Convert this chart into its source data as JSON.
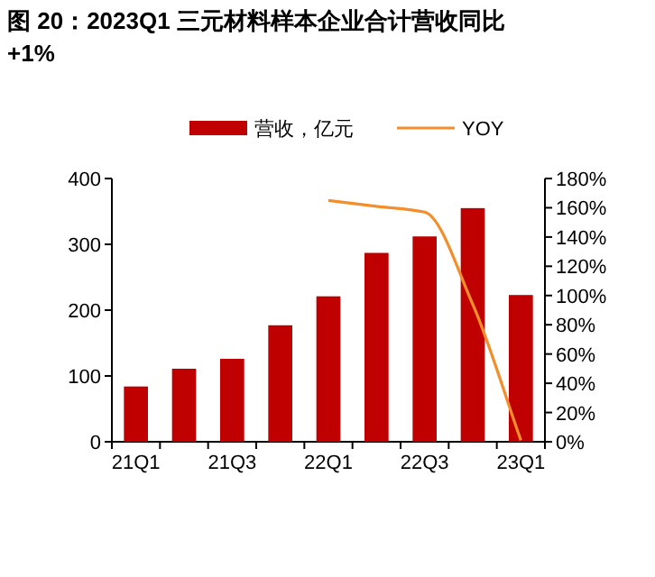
{
  "chart_data": {
    "type": "bar",
    "title": "图 20：2023Q1 三元材料样本企业合计营收同比+1%",
    "categories": [
      "21Q1",
      null,
      "21Q3",
      null,
      "22Q1",
      null,
      "22Q3",
      null,
      "23Q1"
    ],
    "series": [
      {
        "name": "营收，亿元",
        "color": "#c00000",
        "values": [
          84,
          111,
          126,
          177,
          221,
          287,
          312,
          355,
          223
        ]
      },
      {
        "name": "YOY",
        "type": "line",
        "axis": "y2",
        "color": "#f28e2b",
        "values": [
          null,
          null,
          null,
          null,
          165,
          161,
          157,
          94,
          1
        ]
      }
    ],
    "ylim": [
      0,
      400
    ],
    "yticks": [
      0,
      100,
      200,
      300,
      400
    ],
    "y2lim": [
      0,
      180
    ],
    "y2ticks": [
      {
        "value": 0,
        "label": "0%"
      },
      {
        "value": 20,
        "label": "20%"
      },
      {
        "value": 40,
        "label": "40%"
      },
      {
        "value": 60,
        "label": "60%"
      },
      {
        "value": 80,
        "label": "80%"
      },
      {
        "value": 100,
        "label": "100%"
      },
      {
        "value": 120,
        "label": "120%"
      },
      {
        "value": 140,
        "label": "140%"
      },
      {
        "value": 160,
        "label": "160%"
      },
      {
        "value": 180,
        "label": "180%"
      }
    ],
    "legend": "top",
    "grid": false,
    "marker": "none"
  }
}
